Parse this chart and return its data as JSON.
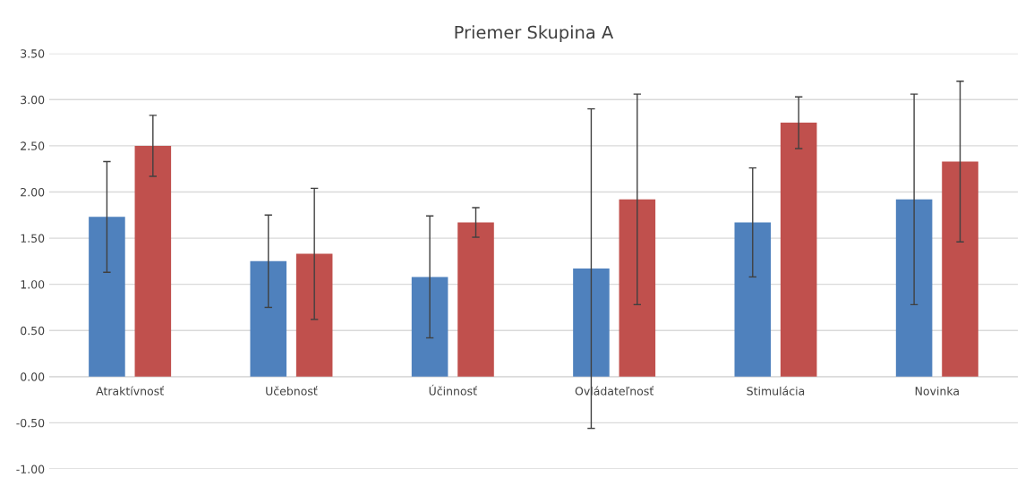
{
  "chart_data": {
    "type": "bar",
    "title": "Priemer Skupina A",
    "categories": [
      "Atraktívnosť",
      "Učebnosť",
      "Účinnosť",
      "Ovládateľnosť",
      "Stimulácia",
      "Novinka"
    ],
    "series": [
      {
        "color": "#4f81bd",
        "values": [
          1.73,
          1.25,
          1.08,
          1.17,
          1.67,
          1.92
        ],
        "errors": [
          0.6,
          0.5,
          0.66,
          1.73,
          0.59,
          1.14
        ]
      },
      {
        "color": "#c0504d",
        "values": [
          2.5,
          1.33,
          1.67,
          1.92,
          2.75,
          2.33
        ],
        "errors": [
          0.33,
          0.71,
          0.16,
          1.14,
          0.28,
          0.87
        ]
      }
    ],
    "ylim": [
      -1,
      3.5
    ],
    "yticks": [
      {
        "value": -1,
        "label": "-1.00"
      },
      {
        "value": -0.5,
        "label": "-0.50"
      },
      {
        "value": 0,
        "label": "0.00"
      },
      {
        "value": 0.5,
        "label": "0.50"
      },
      {
        "value": 1,
        "label": "1.00"
      },
      {
        "value": 1.5,
        "label": "1.50"
      },
      {
        "value": 2,
        "label": "2.00"
      },
      {
        "value": 2.5,
        "label": "2.50"
      },
      {
        "value": 3,
        "label": "3.00"
      },
      {
        "value": 3.5,
        "label": "3.50"
      }
    ],
    "grid": "y"
  }
}
